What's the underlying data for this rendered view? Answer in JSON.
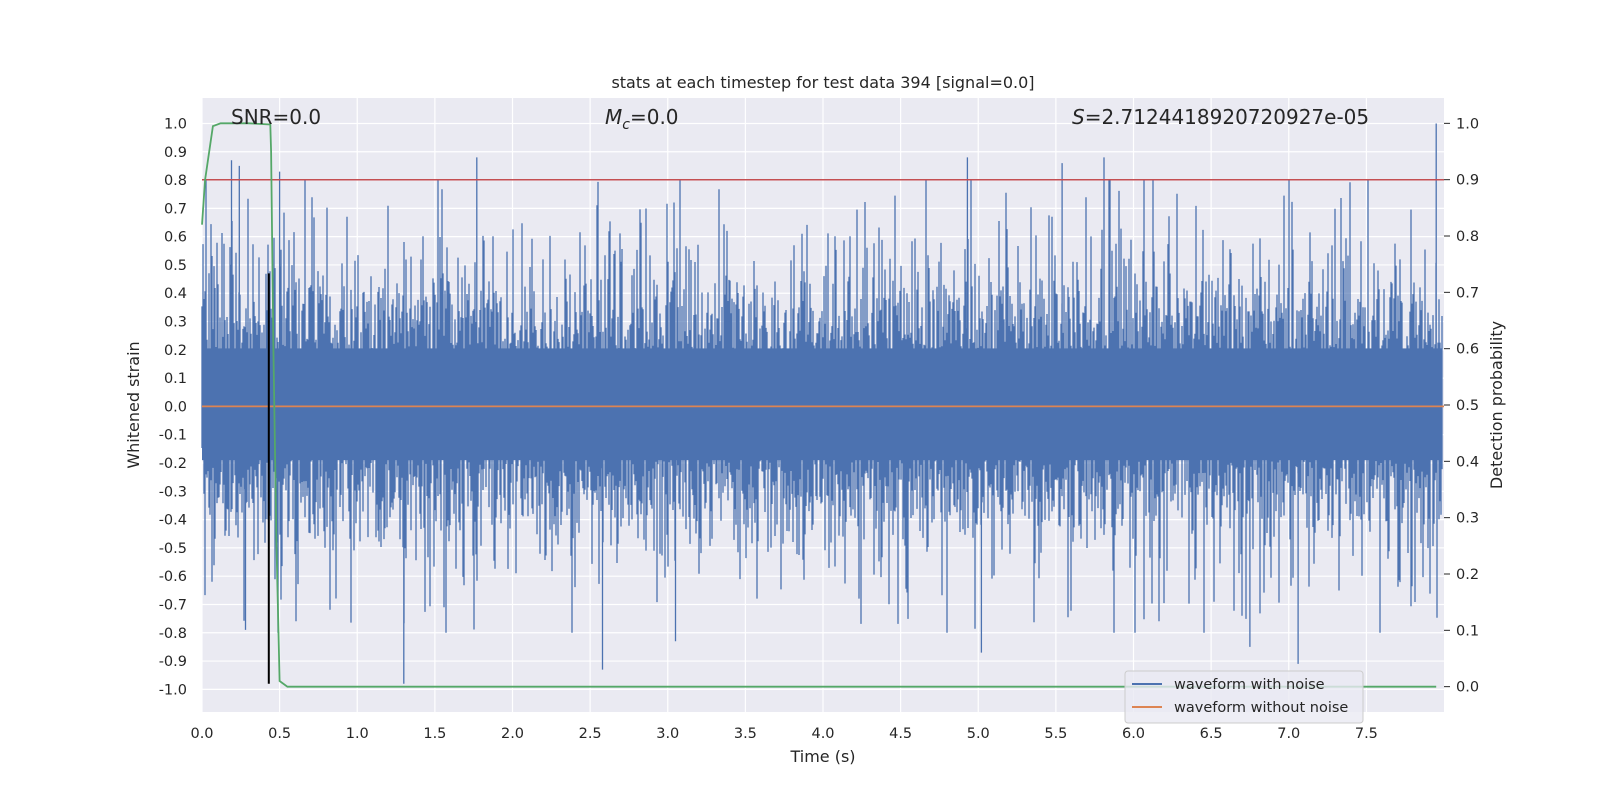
{
  "chart_data": {
    "type": "line",
    "title": "stats at each timestep for test data 394 [signal=0.0]",
    "xlabel": "Time (s)",
    "ylabel": "Whitened strain",
    "y2label": "Detection probability",
    "xlim": [
      0.0,
      8.0
    ],
    "ylim": [
      -1.08,
      1.09
    ],
    "y2lim": [
      -0.045,
      1.045
    ],
    "grid": true,
    "x_ticks": [
      "0.0",
      "0.5",
      "1.0",
      "1.5",
      "2.0",
      "2.5",
      "3.0",
      "3.5",
      "4.0",
      "4.5",
      "5.0",
      "5.5",
      "6.0",
      "6.5",
      "7.0",
      "7.5"
    ],
    "y_ticks": [
      "1.0",
      "0.9",
      "0.8",
      "0.7",
      "0.6",
      "0.5",
      "0.4",
      "0.3",
      "0.2",
      "0.1",
      "0.0",
      "-0.1",
      "-0.2",
      "-0.3",
      "-0.4",
      "-0.5",
      "-0.6",
      "-0.7",
      "-0.8",
      "-0.9",
      "-1.0"
    ],
    "y2_ticks": [
      "1.0",
      "0.9",
      "0.8",
      "0.7",
      "0.6",
      "0.5",
      "0.4",
      "0.3",
      "0.2",
      "0.1",
      "0.0"
    ],
    "annotations": {
      "snr": "SNR=0.0",
      "mc_symbol": "M",
      "mc_sub": "c",
      "mc_value": "=0.0",
      "s_symbol": "S",
      "s_value": "=2.7124418920720927e-05"
    },
    "series": [
      {
        "name": "waveform with noise",
        "color": "#4c72b0",
        "axis": "left",
        "style": "noise",
        "x_range": [
          0.0,
          7.99
        ],
        "amplitude_envelope": 0.4,
        "min": -0.98,
        "max": 1.0
      },
      {
        "name": "waveform without noise",
        "color": "#dd8452",
        "axis": "left",
        "x": [
          0.0,
          8.0
        ],
        "y": [
          0.0,
          0.0
        ]
      },
      {
        "name": "detection probability",
        "color": "#55a868",
        "axis": "right",
        "x": [
          0.0,
          0.02,
          0.07,
          0.12,
          0.2,
          0.3,
          0.44,
          0.445,
          0.46,
          0.48,
          0.5,
          0.55,
          1.0,
          7.95
        ],
        "y": [
          0.82,
          0.9,
          0.995,
          1.0,
          1.0,
          1.0,
          0.998,
          0.95,
          0.6,
          0.25,
          0.01,
          0.0,
          0.0,
          0.0
        ]
      },
      {
        "name": "threshold",
        "color": "#c44e52",
        "axis": "right",
        "x": [
          0.0,
          8.0
        ],
        "y": [
          0.9,
          0.9
        ]
      },
      {
        "name": "trigger marker",
        "color": "#000000",
        "axis": "left",
        "x": [
          0.43,
          0.43
        ],
        "y": [
          -0.98,
          0.47
        ]
      }
    ],
    "legend": {
      "position": "lower-right",
      "entries": [
        {
          "label": "waveform with noise",
          "color": "#4c72b0"
        },
        {
          "label": "waveform without noise",
          "color": "#dd8452"
        }
      ]
    }
  }
}
